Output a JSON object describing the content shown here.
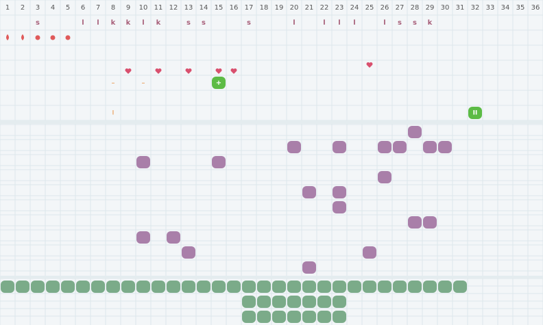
{
  "columns": [
    1,
    2,
    3,
    4,
    5,
    6,
    7,
    8,
    9,
    10,
    11,
    12,
    13,
    14,
    15,
    16,
    17,
    18,
    19,
    20,
    21,
    22,
    23,
    24,
    25,
    26,
    27,
    28,
    29,
    30,
    31,
    32,
    33,
    34,
    35,
    36
  ],
  "letter_row": [
    null,
    null,
    "s",
    null,
    null,
    "l",
    "l",
    "k",
    "k",
    "l",
    "k",
    null,
    "s",
    "s",
    null,
    null,
    "s",
    null,
    null,
    "l",
    null,
    "l",
    "l",
    "l",
    null,
    "l",
    "s",
    "s",
    "k",
    null,
    null,
    null,
    null,
    null,
    null,
    null
  ],
  "markers": {
    "plus": "+",
    "double": "II",
    "single": "I",
    "dash_a": "–",
    "dash_b": "–"
  }
}
